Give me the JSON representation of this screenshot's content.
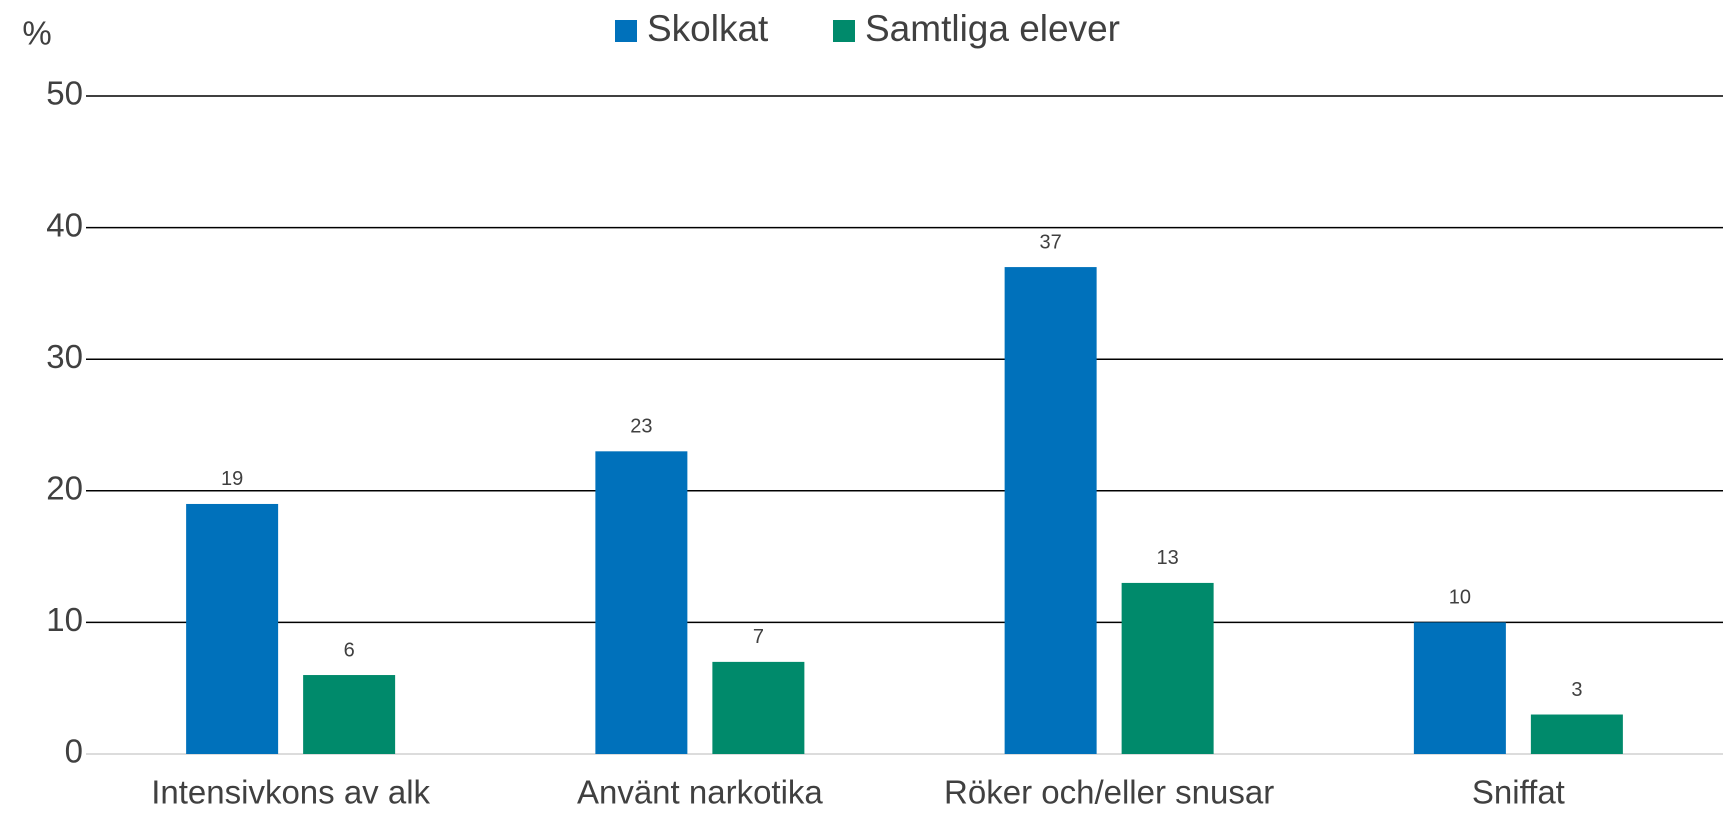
{
  "chart_data": {
    "type": "bar",
    "y_label": "%",
    "categories": [
      "Intensivkons av alk",
      "Använt narkotika",
      "Röker och/eller snusar",
      "Sniffat"
    ],
    "series": [
      {
        "name": "Skolkat",
        "color": "#0071bb",
        "values": [
          19,
          23,
          37,
          10
        ]
      },
      {
        "name": "Samtliga elever",
        "color": "#008a6b",
        "values": [
          6,
          7,
          13,
          3
        ]
      }
    ],
    "ylim": [
      0,
      50
    ],
    "yticks": [
      0,
      10,
      20,
      30,
      40,
      50
    ],
    "grid": true,
    "legend": "top"
  }
}
